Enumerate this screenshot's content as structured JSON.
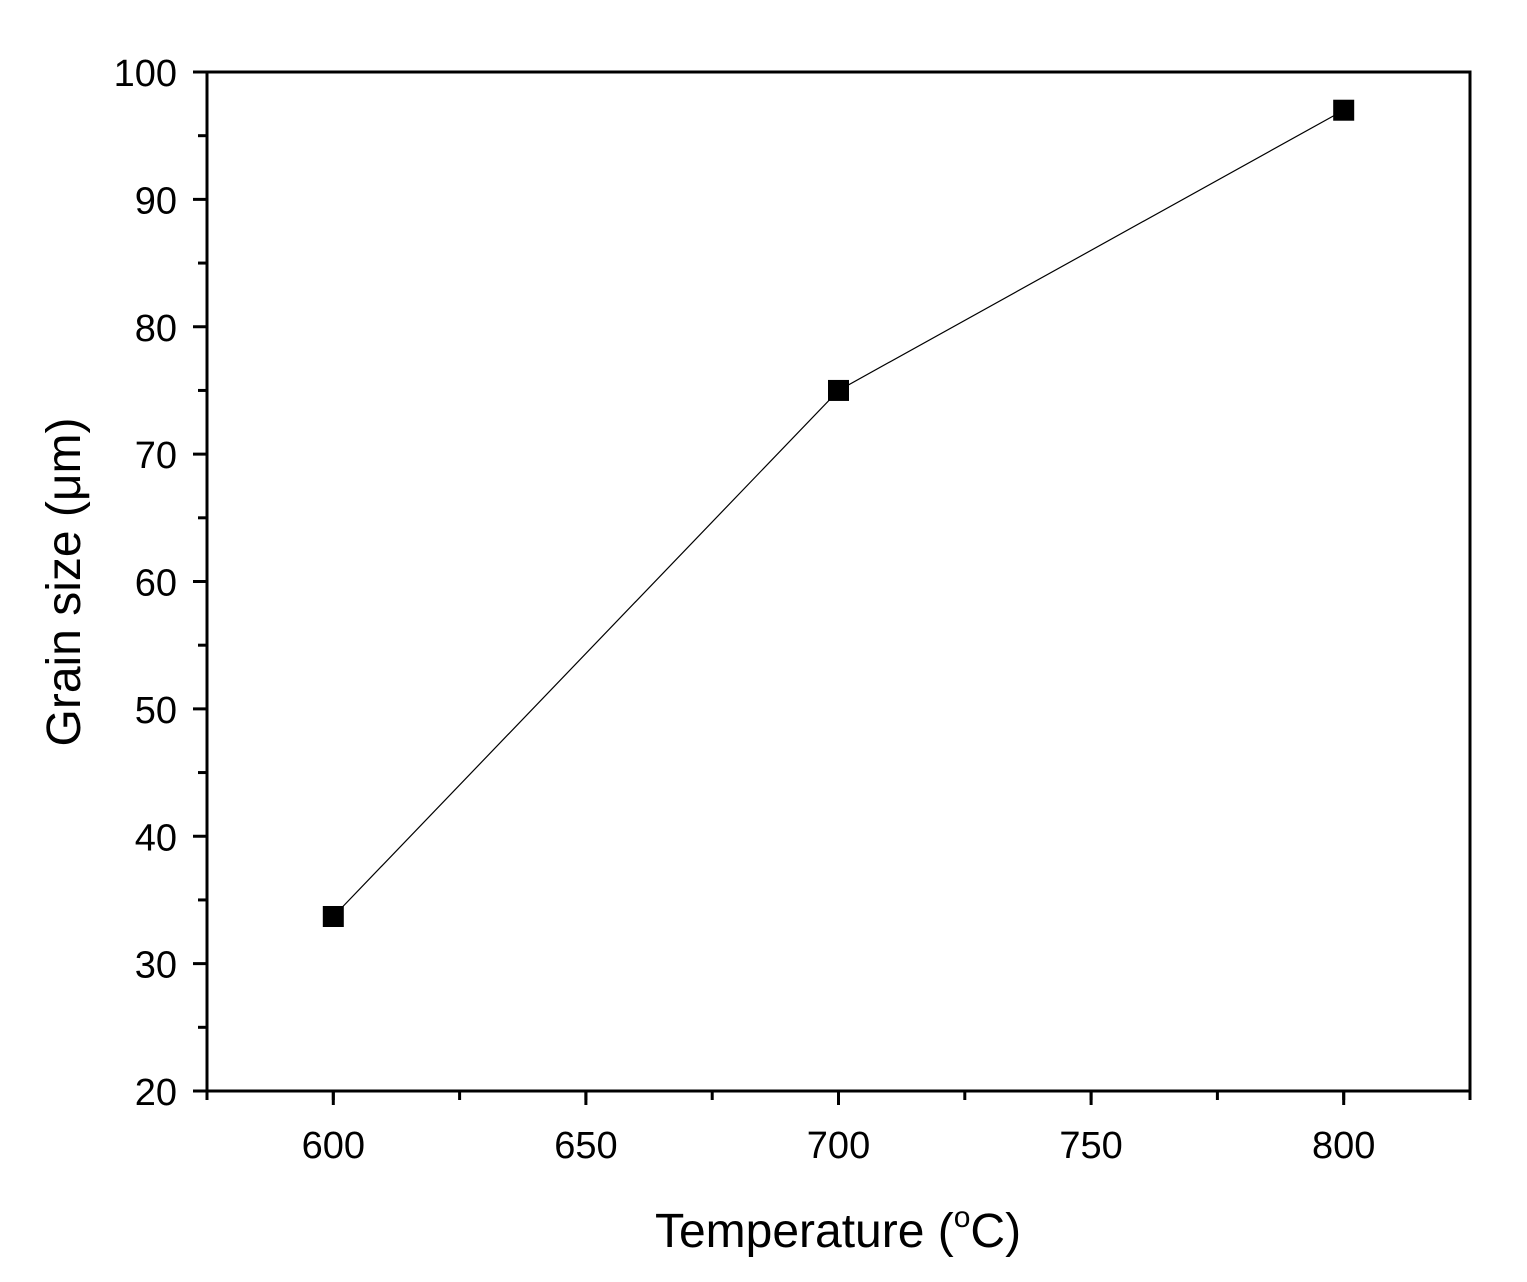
{
  "chart_data": {
    "type": "line",
    "xlabel": "Temperature (",
    "xlabel_sup": "o",
    "xlabel_end": "C)",
    "ylabel": "Grain size (μm)",
    "xlim": [
      575,
      825
    ],
    "ylim": [
      20,
      100
    ],
    "x_ticks": [
      "600",
      "650",
      "700",
      "750",
      "800"
    ],
    "y_ticks": [
      "20",
      "30",
      "40",
      "50",
      "60",
      "70",
      "80",
      "90",
      "100"
    ],
    "grid": false,
    "legend": "none",
    "series": [
      {
        "x": [
          600,
          700,
          800
        ],
        "y": [
          33.7,
          75.0,
          97.0
        ],
        "marker": "square",
        "color": "#000000"
      }
    ]
  }
}
